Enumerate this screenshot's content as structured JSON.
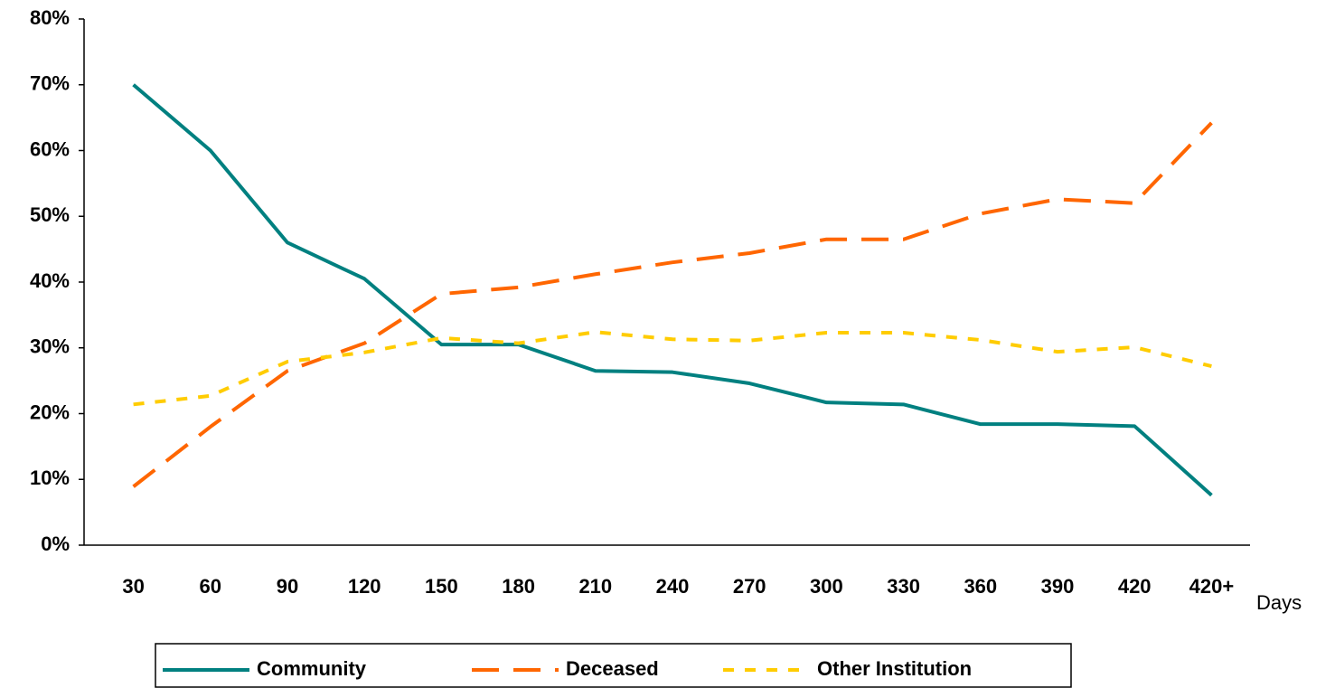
{
  "chart_data": {
    "type": "line",
    "x_label": "Days",
    "categories": [
      "30",
      "60",
      "90",
      "120",
      "150",
      "180",
      "210",
      "240",
      "270",
      "300",
      "330",
      "360",
      "390",
      "420",
      "420+"
    ],
    "series": [
      {
        "name": "Community",
        "color": "#008080",
        "dash": "solid",
        "values": [
          70,
          60,
          46,
          40.5,
          30.5,
          30.5,
          26.5,
          26.3,
          24.6,
          21.7,
          21.4,
          18.4,
          18.4,
          18.1,
          7.6
        ]
      },
      {
        "name": "Deceased",
        "color": "#ff6600",
        "dash": "long-dash",
        "values": [
          8.9,
          18,
          26.5,
          30.7,
          38.2,
          39.2,
          41.2,
          43,
          44.4,
          46.5,
          46.5,
          50.4,
          52.6,
          52,
          64.2
        ]
      },
      {
        "name": "Other Institution",
        "color": "#ffcc00",
        "dash": "short-dash",
        "values": [
          21.4,
          22.7,
          27.9,
          29.3,
          31.5,
          30.7,
          32.4,
          31.3,
          31.1,
          32.3,
          32.3,
          31.2,
          29.4,
          30.1,
          27.2
        ]
      }
    ],
    "ylim": [
      0,
      80
    ],
    "yticks": [
      {
        "value": 0,
        "label": "0%"
      },
      {
        "value": 10,
        "label": "10%"
      },
      {
        "value": 20,
        "label": "20%"
      },
      {
        "value": 30,
        "label": "30%"
      },
      {
        "value": 40,
        "label": "40%"
      },
      {
        "value": 50,
        "label": "50%"
      },
      {
        "value": 60,
        "label": "60%"
      },
      {
        "value": 70,
        "label": "70%"
      },
      {
        "value": 80,
        "label": "80%"
      }
    ],
    "grid": false,
    "legend": "bottom"
  }
}
